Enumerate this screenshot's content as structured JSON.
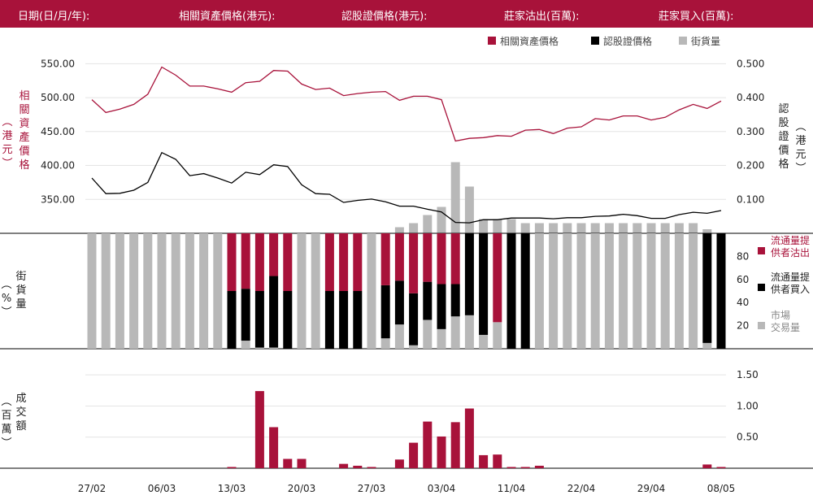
{
  "header": {
    "date_label": "日期(日/月/年):",
    "underlying_price_label": "相關資產價格(港元):",
    "warrant_price_label": "認股證價格(港元):",
    "mm_sell_label": "莊家沽出(百萬):",
    "mm_buy_label": "莊家買入(百萬):"
  },
  "colors": {
    "brand": "#a8123a",
    "black": "#000000",
    "grey": "#b8b8b8"
  },
  "chart_data": [
    {
      "type": "line",
      "legend": [
        "相關資產價格",
        "認股證價格",
        "街貨量"
      ],
      "left_axis_label": "相關資產價格(港元)",
      "right_axis_label": "認股證價格(港元)",
      "left_ticks": [
        "550.00",
        "500.00",
        "450.00",
        "400.00",
        "350.00"
      ],
      "right_ticks": [
        "0.500",
        "0.400",
        "0.300",
        "0.200",
        "0.100"
      ],
      "ylim_left": [
        300,
        560
      ],
      "ylim_right": [
        0,
        0.52
      ],
      "underlying_price": [
        497,
        478,
        483,
        490,
        505,
        545,
        533,
        517,
        517,
        513,
        508,
        522,
        524,
        540,
        539,
        520,
        512,
        514,
        503,
        506,
        508,
        509,
        496,
        502,
        502,
        497,
        436,
        440,
        441,
        444,
        443,
        452,
        453,
        447,
        455,
        457,
        469,
        467,
        473,
        473,
        467,
        471,
        482,
        490,
        484,
        495
      ],
      "warrant_price": [
        0.163,
        0.117,
        0.118,
        0.127,
        0.15,
        0.238,
        0.218,
        0.17,
        0.176,
        0.163,
        0.148,
        0.18,
        0.173,
        0.202,
        0.197,
        0.143,
        0.117,
        0.115,
        0.091,
        0.097,
        0.101,
        0.093,
        0.08,
        0.08,
        0.071,
        0.063,
        0.032,
        0.031,
        0.04,
        0.04,
        0.045,
        0.045,
        0.045,
        0.043,
        0.046,
        0.046,
        0.05,
        0.051,
        0.056,
        0.052,
        0.044,
        0.044,
        0.055,
        0.062,
        0.059,
        0.067
      ],
      "outstanding_pct": [
        0,
        0,
        0,
        0,
        0,
        0,
        0,
        0,
        0,
        0,
        0,
        0,
        0,
        0,
        0,
        0,
        0,
        0,
        0,
        0,
        0,
        0,
        3,
        5,
        9,
        13,
        35,
        23,
        7,
        7,
        7,
        5,
        5,
        5,
        5,
        5,
        5,
        5,
        5,
        5,
        5,
        5,
        5,
        5,
        2,
        0
      ]
    },
    {
      "type": "bar",
      "y_axis_label": "街貨量(%)",
      "yticks": [
        "80",
        "60",
        "40",
        "20"
      ],
      "ylim": [
        0,
        100
      ],
      "legend": [
        "流通量提供者沽出",
        "流通量提供者買入",
        "市場交易量"
      ],
      "mm_sell_pct": [
        0,
        0,
        0,
        0,
        0,
        0,
        0,
        0,
        0,
        0,
        50,
        48,
        50,
        37,
        50,
        0,
        0,
        50,
        50,
        50,
        0,
        45,
        41,
        52,
        42,
        44,
        44,
        0,
        0,
        77,
        0,
        0,
        0,
        0,
        0,
        0,
        0,
        0,
        0,
        0,
        0,
        0,
        0,
        0,
        0,
        0
      ],
      "mm_buy_pct": [
        0,
        0,
        0,
        0,
        0,
        0,
        0,
        0,
        0,
        0,
        50,
        45,
        49,
        62,
        50,
        0,
        0,
        50,
        50,
        50,
        0,
        46,
        38,
        45,
        33,
        39,
        28,
        71,
        88,
        0,
        100,
        100,
        0,
        0,
        0,
        0,
        0,
        0,
        0,
        0,
        0,
        0,
        0,
        0,
        95,
        100
      ],
      "market_pct": [
        100,
        100,
        100,
        100,
        100,
        100,
        100,
        100,
        100,
        100,
        0,
        7,
        1,
        1,
        0,
        100,
        100,
        0,
        0,
        0,
        100,
        9,
        21,
        3,
        25,
        17,
        28,
        29,
        12,
        23,
        0,
        0,
        100,
        100,
        100,
        100,
        100,
        100,
        100,
        100,
        100,
        100,
        100,
        100,
        5,
        0
      ]
    },
    {
      "type": "bar",
      "y_axis_label": "成交額(百萬)",
      "yticks": [
        "1.50",
        "1.00",
        "0.50"
      ],
      "ylim": [
        0,
        1.62
      ],
      "values": [
        0,
        0,
        0,
        0,
        0,
        0,
        0,
        0,
        0,
        0,
        0.02,
        0,
        1.24,
        0.66,
        0.15,
        0.15,
        0,
        0,
        0.07,
        0.04,
        0.02,
        0,
        0.14,
        0.41,
        0.75,
        0.51,
        0.74,
        0.96,
        0.21,
        0.22,
        0.02,
        0.02,
        0.04,
        0,
        0,
        0,
        0,
        0,
        0,
        0,
        0,
        0,
        0,
        0,
        0.06,
        0.02
      ],
      "x_labels": [
        {
          "label": "27/02",
          "index": 0
        },
        {
          "label": "06/03",
          "index": 5
        },
        {
          "label": "13/03",
          "index": 10
        },
        {
          "label": "20/03",
          "index": 15
        },
        {
          "label": "27/03",
          "index": 20
        },
        {
          "label": "03/04",
          "index": 25
        },
        {
          "label": "11/04",
          "index": 30
        },
        {
          "label": "22/04",
          "index": 35
        },
        {
          "label": "29/04",
          "index": 40
        },
        {
          "label": "08/05",
          "index": 45
        }
      ]
    }
  ]
}
